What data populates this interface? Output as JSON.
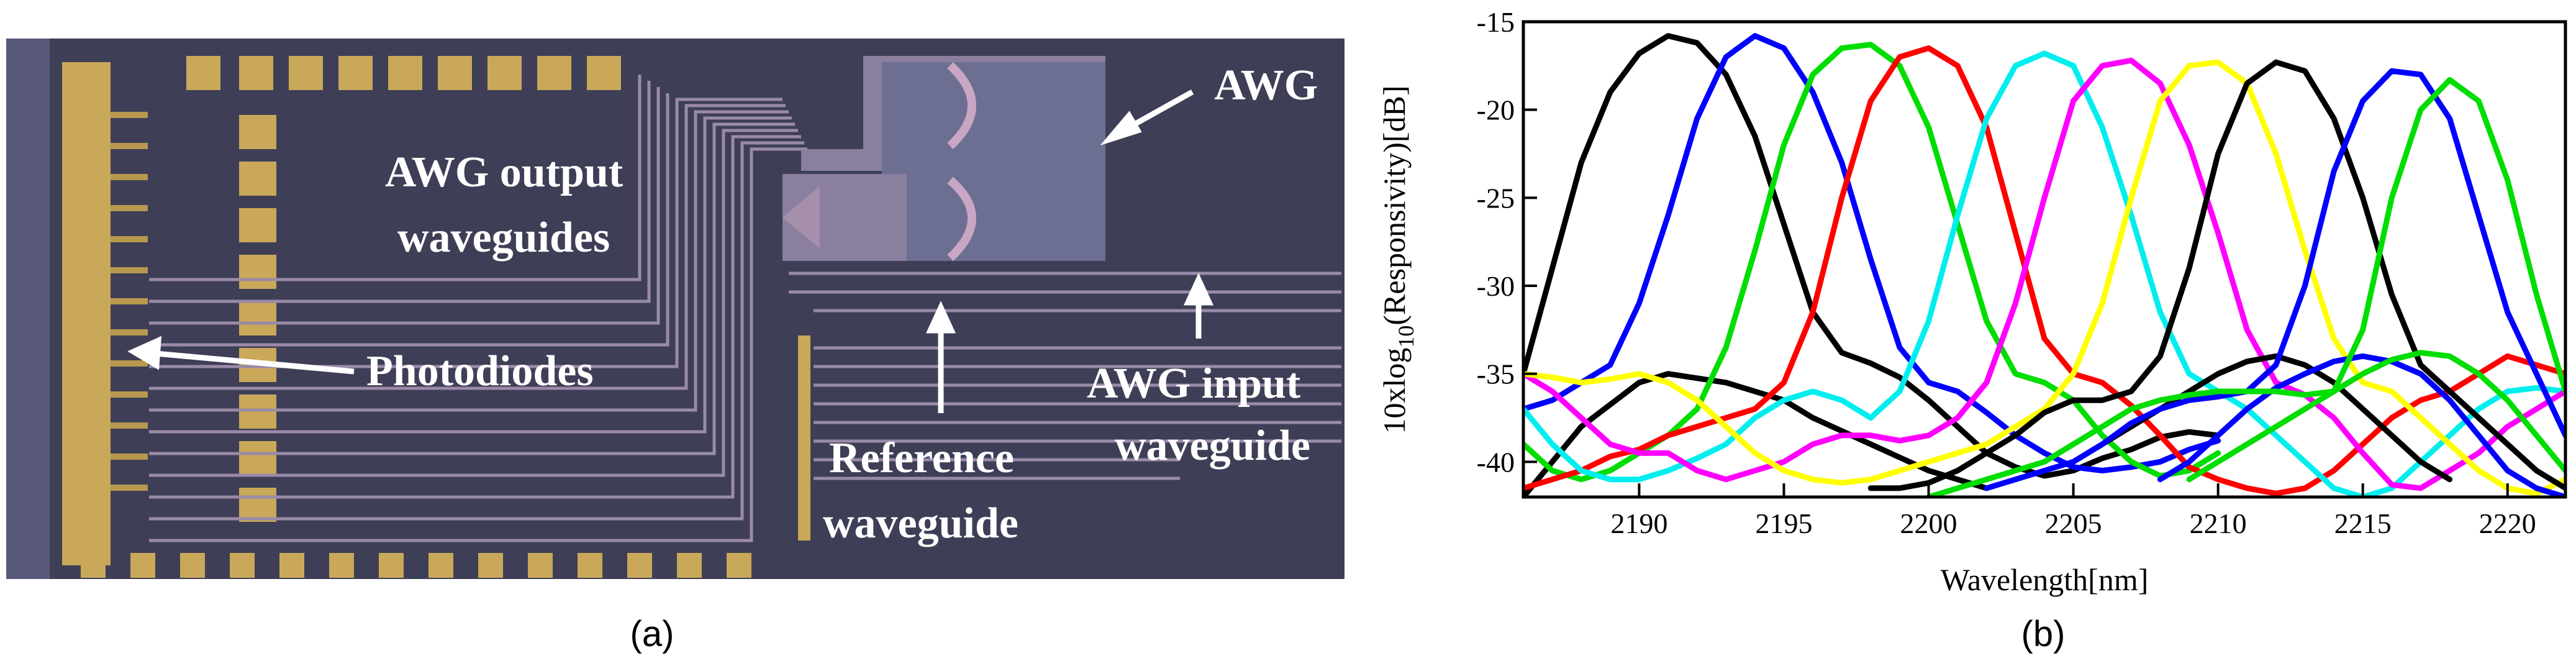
{
  "panel_a": {
    "caption": "(a)",
    "labels": {
      "awg": "AWG",
      "awg_output_1": "AWG output",
      "awg_output_2": "waveguides",
      "photodiodes": "Photodiodes",
      "awg_input_1": "AWG input",
      "awg_input_2": "waveguide",
      "reference_1": "Reference",
      "reference_2": "waveguide"
    },
    "colors": {
      "substrate": "#3e3f56",
      "metal": "#c9a85a",
      "waveguide": "#9a8aa8",
      "awg_body": "#6c6f92",
      "annotation": "#ffffff"
    }
  },
  "panel_b": {
    "caption": "(b)"
  },
  "chart_data": {
    "type": "line",
    "xlabel": "Wavelength[nm]",
    "ylabel_main": "10xlog",
    "ylabel_sub": "10",
    "ylabel_rest": "(Responsivity)[dB]",
    "xlim": [
      2186,
      2222
    ],
    "ylim": [
      -42,
      -15
    ],
    "xticks": [
      2190,
      2195,
      2200,
      2205,
      2210,
      2215,
      2220
    ],
    "yticks": [
      -15,
      -20,
      -25,
      -30,
      -35,
      -40
    ],
    "series": [
      {
        "color": "#000000",
        "x": [
          2186,
          2187,
          2188,
          2189,
          2190,
          2191,
          2192,
          2193,
          2194,
          2195,
          2196,
          2197,
          2198,
          2199,
          2200,
          2201,
          2202,
          2203,
          2204,
          2205,
          2206,
          2207,
          2208,
          2209,
          2210
        ],
        "y": [
          -35,
          -29,
          -23,
          -19,
          -16.8,
          -15.8,
          -16.2,
          -18,
          -21.5,
          -26.5,
          -31.5,
          -33.8,
          -34.4,
          -35.2,
          -36.5,
          -38,
          -39.5,
          -40.3,
          -40.8,
          -40.5,
          -39.8,
          -39.3,
          -38.6,
          -38.3,
          -38.5
        ]
      },
      {
        "color": "#000000",
        "x": [
          2186,
          2188,
          2190,
          2191,
          2193,
          2195,
          2196,
          2198,
          2200,
          2202
        ],
        "y": [
          -42,
          -38,
          -35.5,
          -35,
          -35.5,
          -36.5,
          -37.5,
          -39,
          -40.5,
          -41.5
        ]
      },
      {
        "color": "#0000ff",
        "x": [
          2186,
          2187,
          2188,
          2189,
          2190,
          2191,
          2192,
          2193,
          2194,
          2195,
          2196,
          2197,
          2198,
          2199,
          2200,
          2201,
          2202,
          2203,
          2204,
          2205,
          2206,
          2207,
          2208,
          2209,
          2210
        ],
        "y": [
          -37,
          -36.5,
          -35.5,
          -34.5,
          -31,
          -26,
          -20.5,
          -17,
          -15.8,
          -16.5,
          -19,
          -23,
          -28.5,
          -33.5,
          -35.5,
          -36,
          -37.2,
          -38.5,
          -39.5,
          -40.3,
          -40.5,
          -40.3,
          -40,
          -39.3,
          -38.8
        ]
      },
      {
        "color": "#00dd00",
        "x": [
          2186,
          2187,
          2188,
          2189,
          2190,
          2191,
          2192,
          2193,
          2194,
          2195,
          2196,
          2197,
          2198,
          2199,
          2200,
          2201,
          2202,
          2203,
          2204,
          2205,
          2206,
          2207,
          2208,
          2209,
          2210
        ],
        "y": [
          -39,
          -40.5,
          -41,
          -40.5,
          -39.5,
          -38.5,
          -37,
          -33.5,
          -28,
          -22,
          -18,
          -16.5,
          -16.3,
          -17.5,
          -21,
          -26.5,
          -32,
          -35,
          -35.5,
          -36.5,
          -38.5,
          -40,
          -40.8,
          -40.5,
          -39.5
        ]
      },
      {
        "color": "#ff0000",
        "x": [
          2186,
          2187,
          2188,
          2189,
          2190,
          2191,
          2192,
          2193,
          2194,
          2195,
          2196,
          2197,
          2198,
          2199,
          2200,
          2201,
          2202,
          2203,
          2204,
          2205,
          2206,
          2207,
          2208,
          2209,
          2210,
          2211,
          2212,
          2213,
          2214,
          2215,
          2216,
          2217,
          2218,
          2219,
          2220,
          2221,
          2222
        ],
        "y": [
          -41.5,
          -41,
          -40.5,
          -39.7,
          -39.3,
          -38.5,
          -38,
          -37.5,
          -37,
          -35.5,
          -31.5,
          -25,
          -19.5,
          -17,
          -16.5,
          -17.5,
          -21,
          -27,
          -33,
          -35,
          -35.5,
          -36.8,
          -38.5,
          -40.3,
          -41,
          -41.5,
          -41.8,
          -41.5,
          -40.5,
          -39,
          -37.5,
          -36.5,
          -36,
          -35,
          -34,
          -34.5,
          -35
        ]
      },
      {
        "color": "#00eeee",
        "x": [
          2186,
          2187,
          2188,
          2189,
          2190,
          2191,
          2192,
          2193,
          2194,
          2195,
          2196,
          2197,
          2198,
          2199,
          2200,
          2201,
          2202,
          2203,
          2204,
          2205,
          2206,
          2207,
          2208,
          2209,
          2210,
          2211,
          2212,
          2213,
          2214,
          2215,
          2216,
          2217,
          2218,
          2219,
          2220,
          2221,
          2222
        ],
        "y": [
          -37,
          -39,
          -40.5,
          -41,
          -41,
          -40.5,
          -39.8,
          -39,
          -37.5,
          -36.5,
          -36,
          -36.5,
          -37.5,
          -36,
          -32,
          -26,
          -20.5,
          -17.5,
          -16.8,
          -17.5,
          -21,
          -26,
          -31.5,
          -35,
          -36,
          -37,
          -38.5,
          -40,
          -41.5,
          -42,
          -41.5,
          -40,
          -38.5,
          -37,
          -36,
          -35.8,
          -36
        ]
      },
      {
        "color": "#ff00ff",
        "x": [
          2186,
          2187,
          2188,
          2189,
          2190,
          2191,
          2192,
          2193,
          2194,
          2195,
          2196,
          2197,
          2198,
          2199,
          2200,
          2201,
          2202,
          2203,
          2204,
          2205,
          2206,
          2207,
          2208,
          2209,
          2210,
          2211,
          2212,
          2213,
          2214,
          2215,
          2216,
          2217,
          2218,
          2219,
          2220,
          2221,
          2222
        ],
        "y": [
          -35,
          -36,
          -37.5,
          -39,
          -39.5,
          -39.5,
          -40.5,
          -41,
          -40.5,
          -40,
          -39,
          -38.5,
          -38.5,
          -38.8,
          -38.5,
          -37.5,
          -35.5,
          -31,
          -25,
          -19.5,
          -17.5,
          -17.2,
          -18.5,
          -22,
          -27,
          -32.5,
          -35.5,
          -36.2,
          -37.5,
          -39.5,
          -41.3,
          -41.5,
          -40.5,
          -39.5,
          -38,
          -37,
          -36
        ]
      },
      {
        "color": "#ffff00",
        "x": [
          2186,
          2187,
          2188,
          2189,
          2190,
          2191,
          2192,
          2193,
          2194,
          2195,
          2196,
          2197,
          2198,
          2199,
          2200,
          2201,
          2202,
          2203,
          2204,
          2205,
          2206,
          2207,
          2208,
          2209,
          2210,
          2211,
          2212,
          2213,
          2214,
          2215,
          2216,
          2217,
          2218,
          2219,
          2220,
          2221,
          2222
        ],
        "y": [
          -35,
          -35.2,
          -35.5,
          -35.3,
          -35,
          -35.5,
          -36.5,
          -38,
          -39.5,
          -40.5,
          -41,
          -41.2,
          -41,
          -40.5,
          -40,
          -39.5,
          -39,
          -38,
          -37,
          -35,
          -31,
          -25,
          -19.5,
          -17.5,
          -17.3,
          -18.5,
          -22.5,
          -28,
          -33,
          -35.5,
          -36,
          -37.5,
          -39,
          -40.5,
          -41.5,
          -41.8,
          -41
        ]
      },
      {
        "color": "#000000",
        "x": [
          2198,
          2199,
          2200,
          2201,
          2202,
          2203,
          2204,
          2205,
          2206,
          2207,
          2208,
          2209,
          2210,
          2211,
          2212,
          2213,
          2214,
          2215,
          2216,
          2217,
          2218,
          2219,
          2220,
          2221,
          2222
        ],
        "y": [
          -41.5,
          -41.5,
          -41.2,
          -40.5,
          -39.5,
          -38.5,
          -37.2,
          -36.5,
          -36.5,
          -36,
          -34,
          -29,
          -22.5,
          -18.5,
          -17.3,
          -17.8,
          -20.5,
          -25,
          -30.5,
          -34.5,
          -36,
          -37.5,
          -39,
          -40.5,
          -41.5
        ]
      },
      {
        "color": "#000000",
        "x": [
          2205,
          2206,
          2207,
          2208,
          2209,
          2210,
          2211,
          2212,
          2213,
          2214,
          2215,
          2216,
          2217,
          2218
        ],
        "y": [
          -40,
          -39,
          -38,
          -37,
          -36,
          -35,
          -34.3,
          -34,
          -34.5,
          -35.5,
          -37,
          -38.5,
          -40,
          -41
        ]
      },
      {
        "color": "#0000ff",
        "x": [
          2202,
          2203,
          2204,
          2205,
          2206,
          2207,
          2208,
          2209,
          2210,
          2211,
          2212,
          2213,
          2214,
          2215,
          2216,
          2217,
          2218,
          2219,
          2220,
          2221,
          2222
        ],
        "y": [
          -41.5,
          -41,
          -40.5,
          -40,
          -39,
          -37.8,
          -37,
          -36.5,
          -36.3,
          -36,
          -34.5,
          -30,
          -23.5,
          -19.5,
          -17.8,
          -18,
          -20.5,
          -26,
          -31.5,
          -35,
          -38.5
        ]
      },
      {
        "color": "#0000ff",
        "x": [
          2208,
          2209,
          2210,
          2211,
          2212,
          2213,
          2214,
          2215,
          2216,
          2217,
          2218,
          2219,
          2220,
          2221,
          2222
        ],
        "y": [
          -41,
          -40,
          -38.5,
          -37,
          -35.8,
          -35,
          -34.3,
          -34,
          -34.3,
          -35,
          -36.5,
          -38.5,
          -40.5,
          -41.5,
          -42
        ]
      },
      {
        "color": "#00dd00",
        "x": [
          2200,
          2201,
          2202,
          2203,
          2204,
          2205,
          2206,
          2207,
          2208,
          2209,
          2210,
          2211,
          2212,
          2213,
          2214,
          2215,
          2216,
          2217,
          2218,
          2219,
          2220,
          2221,
          2222
        ],
        "y": [
          -42,
          -41.5,
          -41,
          -40.5,
          -40,
          -39,
          -38,
          -37,
          -36.5,
          -36.2,
          -36,
          -36,
          -36,
          -36.2,
          -36,
          -32.5,
          -25,
          -20,
          -18.3,
          -19.5,
          -24,
          -30.5,
          -36
        ]
      },
      {
        "color": "#00dd00",
        "x": [
          2209,
          2210,
          2211,
          2212,
          2213,
          2214,
          2215,
          2216,
          2217,
          2218,
          2219,
          2220,
          2221,
          2222
        ],
        "y": [
          -41,
          -40,
          -39,
          -38,
          -37,
          -36,
          -35,
          -34.2,
          -33.8,
          -34,
          -35,
          -36.5,
          -38.5,
          -40.5
        ]
      }
    ]
  }
}
